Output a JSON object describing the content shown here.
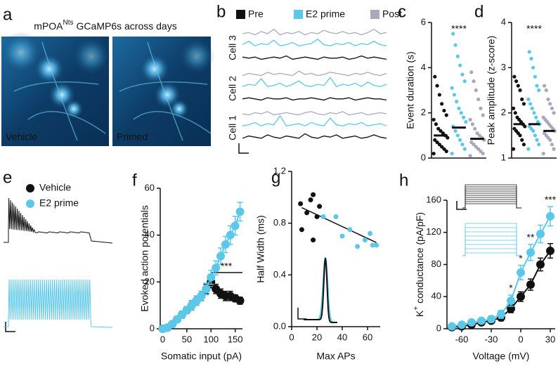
{
  "chart_data": [
    {
      "type": "image",
      "panel": "a",
      "title": [
        {
          "text": "mPOA"
        },
        {
          "text": "Nts",
          "sup": true
        },
        {
          "text": "GCaMP6s across days"
        }
      ],
      "images": [
        "Vehicle",
        "Primed"
      ]
    },
    {
      "type": "trace",
      "panel": "b",
      "series": [
        {
          "name": "Pre",
          "color": "#111111"
        },
        {
          "name": "E2 prime",
          "color": "#5bc8ea"
        },
        {
          "name": "Post",
          "color": "#aaa8bb"
        }
      ],
      "cells": [
        {
          "label": "Cell 3",
          "values": [
            [
              3,
              2,
              3,
              1,
              2,
              3,
              2,
              4,
              1,
              2,
              3,
              2,
              1,
              3,
              2,
              2,
              3,
              1,
              2,
              4,
              2,
              3,
              2,
              1
            ],
            [
              4,
              7,
              3,
              5,
              4,
              8,
              3,
              4,
              6,
              3,
              4,
              5,
              9,
              4,
              3,
              5,
              4,
              6,
              3,
              5,
              4,
              7,
              4,
              3
            ],
            [
              5,
              6,
              4,
              7,
              5,
              9,
              4,
              6,
              5,
              7,
              4,
              6,
              5,
              8,
              6,
              5,
              7,
              5,
              6,
              4,
              6,
              9,
              5,
              6
            ]
          ]
        },
        {
          "label": "Cell 2",
          "values": [
            [
              2,
              3,
              2,
              1,
              3,
              2,
              2,
              3,
              1,
              2,
              2,
              3,
              2,
              1,
              3,
              2,
              2,
              3,
              1,
              2,
              3,
              2,
              2,
              1
            ],
            [
              3,
              5,
              4,
              10,
              3,
              4,
              6,
              3,
              5,
              8,
              4,
              3,
              5,
              4,
              11,
              3,
              5,
              4,
              6,
              3,
              7,
              4,
              3,
              5
            ],
            [
              4,
              6,
              5,
              4,
              7,
              5,
              6,
              5,
              4,
              8,
              5,
              6,
              4,
              5,
              7,
              6,
              5,
              4,
              6,
              5,
              7,
              5,
              4,
              6
            ]
          ]
        },
        {
          "label": "Cell 1",
          "values": [
            [
              2,
              4,
              3,
              2,
              5,
              3,
              2,
              4,
              3,
              2,
              6,
              3,
              2,
              4,
              3,
              5,
              2,
              3,
              4,
              2,
              3,
              5,
              3,
              2
            ],
            [
              3,
              4,
              6,
              3,
              5,
              4,
              12,
              3,
              4,
              5,
              3,
              6,
              4,
              3,
              10,
              4,
              3,
              5,
              4,
              6,
              3,
              4,
              5,
              3
            ],
            [
              5,
              4,
              6,
              5,
              7,
              4,
              5,
              6,
              5,
              4,
              6,
              7,
              5,
              4,
              6,
              5,
              7,
              4,
              5,
              6,
              4,
              5,
              6,
              5
            ]
          ]
        }
      ]
    },
    {
      "type": "dotplot",
      "panel": "c",
      "y_label": "Event duration (s)",
      "ylim": [
        0,
        6
      ],
      "yticks": [
        0,
        2,
        4,
        6
      ],
      "annotation": "****",
      "groups": [
        {
          "color": "#111111",
          "mean": 1.0,
          "values": [
            0.2,
            0.3,
            0.4,
            0.5,
            0.6,
            0.7,
            0.8,
            0.9,
            1.0,
            1.1,
            1.2,
            1.3,
            1.5,
            1.7,
            1.9,
            2.1,
            2.4,
            2.8,
            3.2,
            3.6
          ]
        },
        {
          "color": "#5bc8ea",
          "mean": 1.35,
          "values": [
            0.2,
            0.4,
            0.6,
            0.8,
            1.0,
            1.2,
            1.4,
            1.6,
            1.8,
            2.0,
            2.2,
            2.5,
            2.8,
            3.1,
            3.4,
            3.7,
            4.1,
            4.5,
            5.0,
            5.5
          ]
        },
        {
          "color": "#aaa8bb",
          "mean": 0.85,
          "values": [
            0.1,
            0.2,
            0.3,
            0.4,
            0.5,
            0.6,
            0.7,
            0.8,
            0.9,
            1.0,
            1.1,
            1.3,
            1.5,
            1.7,
            1.9,
            2.2,
            2.6,
            3.0,
            3.4,
            3.8
          ]
        }
      ]
    },
    {
      "type": "dotplot",
      "panel": "d",
      "y_label": "Peak amplitude (z-score)",
      "ylim": [
        1,
        4
      ],
      "yticks": [
        1,
        2,
        3,
        4
      ],
      "annotation": "****",
      "groups": [
        {
          "color": "#111111",
          "mean": 1.75,
          "values": [
            1.2,
            1.3,
            1.4,
            1.5,
            1.55,
            1.6,
            1.65,
            1.7,
            1.75,
            1.8,
            1.85,
            1.9,
            2.0,
            2.1,
            2.2,
            2.3,
            2.5,
            2.6,
            2.7,
            2.8
          ]
        },
        {
          "color": "#5bc8ea",
          "mean": 1.75,
          "values": [
            1.2,
            1.3,
            1.4,
            1.5,
            1.6,
            1.65,
            1.7,
            1.75,
            1.8,
            1.9,
            2.0,
            2.1,
            2.2,
            2.3,
            2.5,
            2.6,
            2.8,
            3.0,
            3.2,
            3.35
          ]
        },
        {
          "color": "#aaa8bb",
          "mean": 1.6,
          "values": [
            1.1,
            1.2,
            1.3,
            1.4,
            1.45,
            1.5,
            1.55,
            1.6,
            1.65,
            1.7,
            1.75,
            1.8,
            1.85,
            1.9,
            2.0,
            2.1,
            2.2,
            2.3,
            2.5,
            2.6
          ]
        }
      ]
    },
    {
      "type": "waveform",
      "panel": "e",
      "series": [
        {
          "name": "Vehicle",
          "color": "#111111"
        },
        {
          "name": "E2 prime",
          "color": "#5bc8ea"
        }
      ]
    },
    {
      "type": "line",
      "panel": "f",
      "x_label": "Somatic input (pA)",
      "y_label": "Evoked action potentials",
      "xlim": [
        -5,
        165
      ],
      "xticks": [
        0,
        50,
        100,
        150
      ],
      "ylim": [
        0,
        60
      ],
      "yticks": [
        0,
        20,
        40,
        60
      ],
      "annotation": "***",
      "x": [
        0,
        10,
        20,
        30,
        40,
        50,
        60,
        70,
        80,
        90,
        100,
        110,
        120,
        130,
        140,
        150,
        160
      ],
      "series": [
        {
          "color": "#111111",
          "values": [
            0,
            0.5,
            2,
            4,
            6,
            8,
            10,
            12,
            14,
            17,
            20,
            17,
            15,
            14,
            14,
            13,
            12
          ],
          "errors": [
            0,
            0.5,
            1,
            1,
            1.5,
            1.5,
            2,
            2,
            2,
            2,
            2.5,
            2,
            2,
            2,
            2,
            1.5,
            1.5
          ]
        },
        {
          "color": "#5bc8ea",
          "values": [
            0,
            0.5,
            2,
            4,
            6,
            8,
            10,
            12,
            14,
            17,
            22,
            26,
            31,
            36,
            40,
            44,
            50
          ],
          "errors": [
            0,
            0.5,
            1,
            1,
            1.5,
            1.5,
            2,
            2,
            2,
            2.5,
            3,
            3,
            3.5,
            3.5,
            4,
            4,
            4
          ]
        }
      ]
    },
    {
      "type": "scatter",
      "panel": "g",
      "x_label": "Max APs",
      "y_label": "Half Width (ms)",
      "xlim": [
        0,
        70
      ],
      "xticks": [
        0,
        20,
        40,
        60
      ],
      "ylim": [
        0,
        1.2
      ],
      "yticks": [
        {
          "value": 0,
          "label": "0.0"
        },
        0.4,
        0.8,
        1.2
      ],
      "series": [
        {
          "color": "#111111",
          "x": [
            7,
            8,
            12,
            15,
            17,
            17,
            20,
            22
          ],
          "values": [
            0.95,
            0.75,
            0.88,
            0.98,
            0.67,
            1.02,
            0.85,
            0.93
          ]
        },
        {
          "color": "#5bc8ea",
          "x": [
            25,
            35,
            40,
            46,
            52,
            58,
            62,
            64,
            67
          ],
          "values": [
            0.85,
            0.85,
            0.7,
            0.75,
            0.62,
            0.67,
            0.72,
            0.63,
            0.63
          ]
        }
      ],
      "trend_line": {
        "x": [
          8,
          67
        ],
        "y": [
          0.92,
          0.65
        ]
      }
    },
    {
      "type": "line",
      "panel": "h",
      "x_label": "Voltage (mV)",
      "y_label": [
        {
          "text": "K"
        },
        {
          "text": "+",
          "sup": true
        },
        {
          "text": "conductance (pA/pF)"
        }
      ],
      "xlim": [
        -75,
        35
      ],
      "xticks": [
        -60,
        -30,
        0,
        30
      ],
      "ylim": [
        0,
        160
      ],
      "yticks": [
        0,
        40,
        80,
        120,
        160
      ],
      "annotations": [
        "*",
        "*",
        "**",
        "***"
      ],
      "x": [
        -70,
        -60,
        -50,
        -40,
        -30,
        -20,
        -10,
        0,
        10,
        20,
        30
      ],
      "series": [
        {
          "color": "#111111",
          "values": [
            2,
            3,
            5,
            8,
            10,
            14,
            25,
            40,
            55,
            80,
            97
          ],
          "errors": [
            1,
            1,
            2,
            2,
            3,
            4,
            5,
            6,
            7,
            8,
            9
          ]
        },
        {
          "color": "#5bc8ea",
          "values": [
            3,
            5,
            8,
            10,
            12,
            18,
            35,
            70,
            95,
            118,
            140
          ],
          "errors": [
            1,
            2,
            2,
            3,
            4,
            5,
            7,
            9,
            10,
            11,
            12
          ]
        }
      ]
    }
  ]
}
